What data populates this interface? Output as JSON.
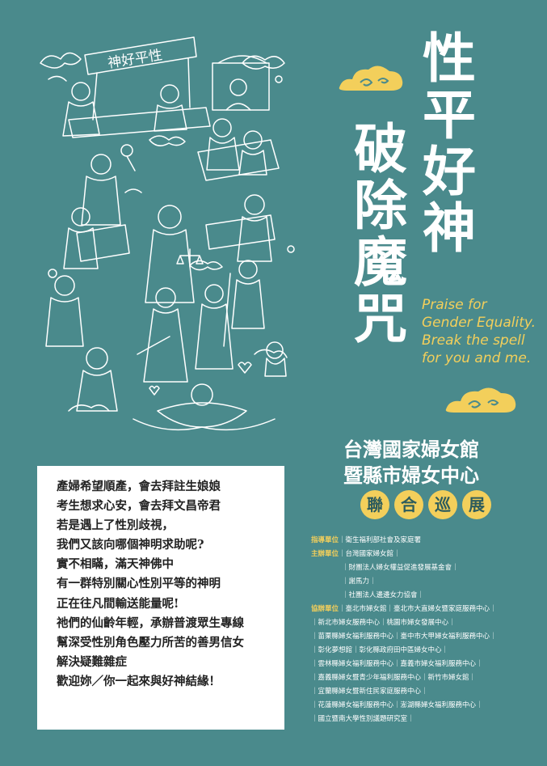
{
  "title": {
    "line1": "性平好神",
    "line2": "破除魔咒"
  },
  "english": [
    "Praise for",
    "Gender Equality.",
    "Break the spell",
    "for you and me."
  ],
  "organizer": {
    "line1": "台灣國家婦女館",
    "line2": "暨縣市婦女中心"
  },
  "tour_chars": [
    "聯",
    "合",
    "巡",
    "展"
  ],
  "banner_text": "神好平性",
  "intro": [
    "產婦希望順產，會去拜註生娘娘",
    "考生想求心安，會去拜文昌帝君",
    "若是遇上了性別歧視，",
    "我們又該向哪個神明求助呢?",
    "實不相瞞，滿天神佛中",
    "有一群特別關心性別平等的神明",
    "正在往凡間輸送能量呢!",
    "祂們的仙齡年輕，承辦普渡眾生專線",
    "幫深受性別角色壓力所苦的善男信女",
    "解決疑難雜症",
    "歡迎妳／你一起來與好神結緣！"
  ],
  "units": [
    {
      "role": "指導單位",
      "text": "｜衛生福利部社會及家庭署"
    },
    {
      "role": "主辦單位",
      "text": "｜台灣國家婦女館｜"
    },
    {
      "role": "",
      "text": "｜財團法人婦女權益促進發展基金會｜"
    },
    {
      "role": "",
      "text": "｜謝馬力｜"
    },
    {
      "role": "",
      "text": "｜社團法人邊邊女力協會｜"
    },
    {
      "role": "協辦單位",
      "text": "｜臺北市婦女館｜臺北市大直婦女暨家庭服務中心｜"
    },
    {
      "role": "",
      "text": "｜新北市婦女服務中心｜桃園市婦女發展中心｜"
    },
    {
      "role": "",
      "text": "｜苗栗縣婦女福利服務中心｜臺中市大甲婦女福利服務中心｜"
    },
    {
      "role": "",
      "text": "｜彰化夢想館｜彰化縣政府田中區婦女中心｜"
    },
    {
      "role": "",
      "text": "｜雲林縣婦女福利服務中心｜嘉義市婦女福利服務中心｜"
    },
    {
      "role": "",
      "text": "｜嘉義縣婦女暨青少年福利服務中心｜新竹市婦女館｜"
    },
    {
      "role": "",
      "text": "｜宜蘭縣婦女暨新住民家庭服務中心｜"
    },
    {
      "role": "",
      "text": "｜花蓮縣婦女福利服務中心｜澎湖縣婦女福利服務中心｜"
    },
    {
      "role": "",
      "text": "｜國立暨南大學性別議題研究室｜"
    }
  ],
  "colors": {
    "background": "#4a8a8c",
    "accent": "#f3cf5b",
    "text_box": "#ffffff"
  }
}
